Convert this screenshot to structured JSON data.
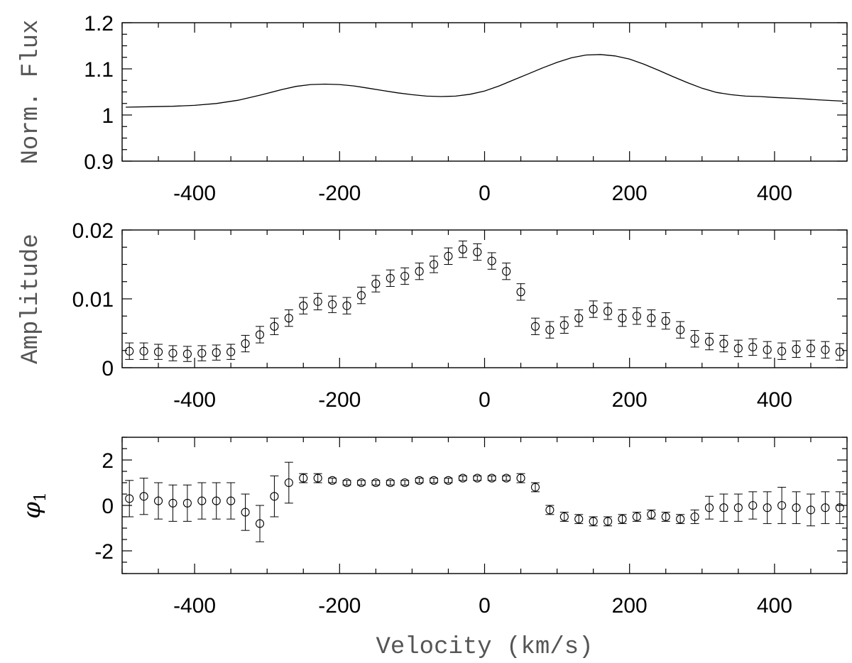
{
  "chart_data": [
    {
      "type": "line",
      "ylabel": "Norm. Flux",
      "xlim": [
        -500,
        500
      ],
      "ylim": [
        0.9,
        1.2
      ],
      "xticks": [
        -400,
        -200,
        0,
        200,
        400
      ],
      "yticks": [
        0.9,
        1,
        1.1,
        1.2
      ],
      "ytick_labels": [
        "0.9",
        "1",
        "1.1",
        "1.2"
      ],
      "x": [
        -495,
        -460,
        -430,
        -400,
        -370,
        -340,
        -310,
        -280,
        -260,
        -240,
        -220,
        -200,
        -180,
        -160,
        -140,
        -120,
        -100,
        -80,
        -60,
        -40,
        -20,
        0,
        20,
        40,
        60,
        80,
        100,
        120,
        140,
        160,
        180,
        200,
        220,
        240,
        260,
        280,
        300,
        320,
        340,
        360,
        380,
        400,
        430,
        460,
        495
      ],
      "y": [
        1.017,
        1.018,
        1.019,
        1.021,
        1.025,
        1.032,
        1.043,
        1.055,
        1.062,
        1.066,
        1.067,
        1.066,
        1.063,
        1.058,
        1.053,
        1.048,
        1.044,
        1.041,
        1.04,
        1.041,
        1.045,
        1.052,
        1.063,
        1.076,
        1.089,
        1.102,
        1.114,
        1.124,
        1.13,
        1.131,
        1.128,
        1.121,
        1.11,
        1.097,
        1.083,
        1.07,
        1.058,
        1.049,
        1.044,
        1.041,
        1.04,
        1.038,
        1.036,
        1.033,
        1.03
      ]
    },
    {
      "type": "scatter",
      "ylabel": "Amplitude",
      "xlim": [
        -500,
        500
      ],
      "ylim": [
        0,
        0.02
      ],
      "xticks": [
        -400,
        -200,
        0,
        200,
        400
      ],
      "yticks": [
        0,
        0.01,
        0.02
      ],
      "ytick_labels": [
        "0",
        "0.01",
        "0.02"
      ],
      "x": [
        -490,
        -470,
        -450,
        -430,
        -410,
        -390,
        -370,
        -350,
        -330,
        -310,
        -290,
        -270,
        -250,
        -230,
        -210,
        -190,
        -170,
        -150,
        -130,
        -110,
        -90,
        -70,
        -50,
        -30,
        -10,
        10,
        30,
        50,
        70,
        90,
        110,
        130,
        150,
        170,
        190,
        210,
        230,
        250,
        270,
        290,
        310,
        330,
        350,
        370,
        390,
        410,
        430,
        450,
        470,
        490
      ],
      "y": [
        0.0024,
        0.0024,
        0.0023,
        0.0021,
        0.002,
        0.0021,
        0.0022,
        0.0023,
        0.0035,
        0.0048,
        0.006,
        0.0072,
        0.009,
        0.0096,
        0.0092,
        0.009,
        0.0105,
        0.0122,
        0.013,
        0.0133,
        0.014,
        0.015,
        0.0162,
        0.0172,
        0.0168,
        0.0155,
        0.014,
        0.011,
        0.006,
        0.0055,
        0.0062,
        0.0072,
        0.0085,
        0.0082,
        0.0072,
        0.0075,
        0.0072,
        0.0068,
        0.0055,
        0.0042,
        0.0038,
        0.0035,
        0.0028,
        0.003,
        0.0026,
        0.0024,
        0.0027,
        0.0028,
        0.0026,
        0.0023
      ],
      "err": [
        0.0012,
        0.0012,
        0.0011,
        0.0011,
        0.0011,
        0.0011,
        0.0011,
        0.0011,
        0.0012,
        0.0012,
        0.0012,
        0.0012,
        0.0012,
        0.0012,
        0.0012,
        0.0012,
        0.0012,
        0.0012,
        0.0012,
        0.0012,
        0.0012,
        0.0012,
        0.0012,
        0.0012,
        0.0012,
        0.0012,
        0.0012,
        0.0012,
        0.0012,
        0.0012,
        0.0012,
        0.0012,
        0.0012,
        0.0012,
        0.0012,
        0.0012,
        0.0012,
        0.0012,
        0.0012,
        0.0012,
        0.0012,
        0.0012,
        0.0012,
        0.0012,
        0.0012,
        0.0012,
        0.0012,
        0.0012,
        0.0012,
        0.0012
      ]
    },
    {
      "type": "scatter",
      "ylabel": "φ",
      "ylabel_sub": "1",
      "xlabel": "Velocity (km/s)",
      "xlim": [
        -500,
        500
      ],
      "ylim": [
        -3,
        3
      ],
      "xticks": [
        -400,
        -200,
        0,
        200,
        400
      ],
      "yticks": [
        -2,
        0,
        2
      ],
      "ytick_labels": [
        "-2",
        "0",
        "2"
      ],
      "x": [
        -490,
        -470,
        -450,
        -430,
        -410,
        -390,
        -370,
        -350,
        -330,
        -310,
        -290,
        -270,
        -250,
        -230,
        -210,
        -190,
        -170,
        -150,
        -130,
        -110,
        -90,
        -70,
        -50,
        -30,
        -10,
        10,
        30,
        50,
        70,
        90,
        110,
        130,
        150,
        170,
        190,
        210,
        230,
        250,
        270,
        290,
        310,
        330,
        350,
        370,
        390,
        410,
        430,
        450,
        470,
        490
      ],
      "y": [
        0.3,
        0.4,
        0.2,
        0.1,
        0.1,
        0.2,
        0.2,
        0.2,
        -0.3,
        -0.8,
        0.4,
        1.0,
        1.2,
        1.2,
        1.1,
        1.0,
        1.0,
        1.0,
        1.0,
        1.0,
        1.1,
        1.1,
        1.1,
        1.2,
        1.2,
        1.2,
        1.2,
        1.2,
        0.8,
        -0.2,
        -0.5,
        -0.6,
        -0.7,
        -0.7,
        -0.6,
        -0.5,
        -0.4,
        -0.5,
        -0.6,
        -0.5,
        -0.1,
        -0.1,
        -0.1,
        0.0,
        -0.1,
        0.0,
        -0.1,
        -0.2,
        -0.1,
        -0.1
      ],
      "err": [
        0.8,
        0.8,
        0.8,
        0.8,
        0.8,
        0.8,
        0.8,
        0.8,
        0.8,
        0.8,
        0.9,
        0.9,
        0.2,
        0.2,
        0.1,
        0.1,
        0.1,
        0.1,
        0.1,
        0.1,
        0.1,
        0.1,
        0.1,
        0.1,
        0.1,
        0.1,
        0.1,
        0.2,
        0.2,
        0.2,
        0.2,
        0.2,
        0.2,
        0.2,
        0.2,
        0.2,
        0.2,
        0.2,
        0.2,
        0.3,
        0.5,
        0.6,
        0.6,
        0.6,
        0.7,
        0.8,
        0.7,
        0.7,
        0.7,
        0.7
      ]
    }
  ]
}
